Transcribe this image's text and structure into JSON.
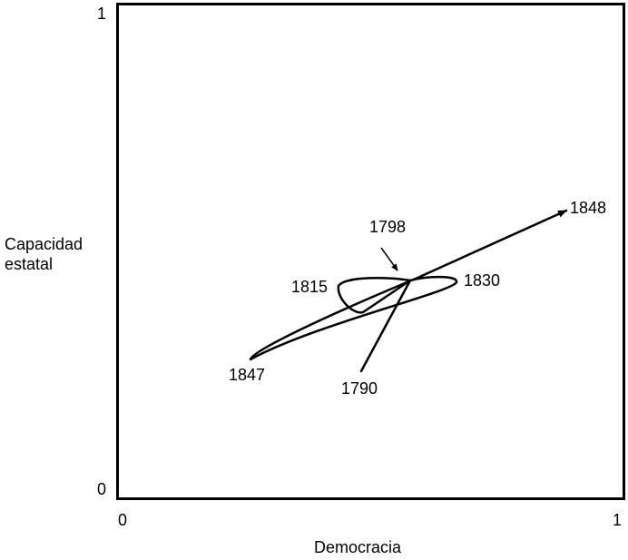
{
  "diagram": {
    "axes": {
      "x_label": "Democracia",
      "y_label_lines": [
        "Capacidad",
        "estatal"
      ],
      "x_ticks": [
        "0",
        "1"
      ],
      "y_ticks": [
        "1",
        "0"
      ]
    },
    "points": {
      "p1790": "1790",
      "p1798": "1798",
      "p1815": "1815",
      "p1830": "1830",
      "p1847": "1847",
      "p1848": "1848"
    },
    "colors": {
      "line": "#000000",
      "frame": "#000000",
      "background": "#ffffff"
    }
  }
}
